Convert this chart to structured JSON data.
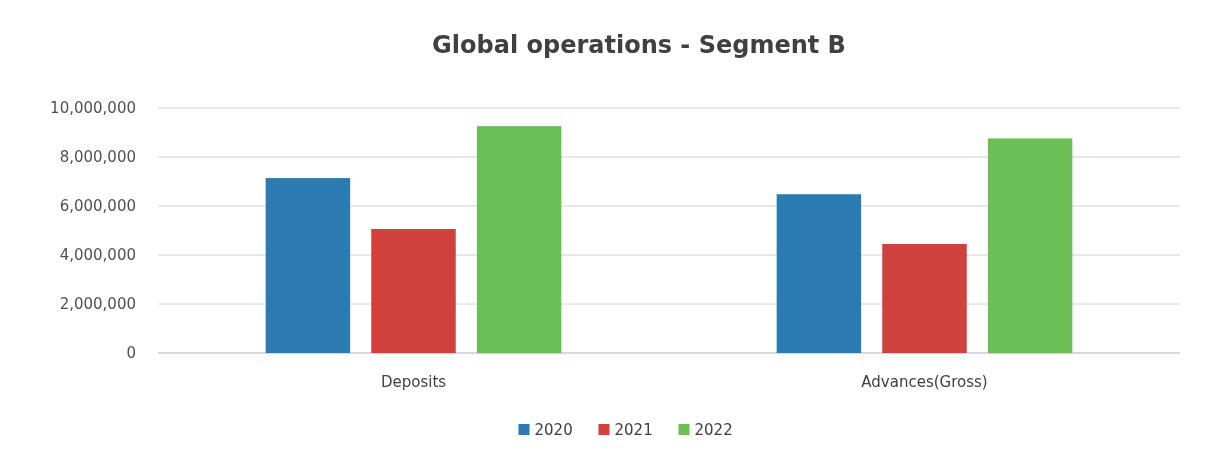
{
  "chart_data": {
    "type": "bar",
    "title": "Global operations - Segment B",
    "categories": [
      "Deposits",
      "Advances(Gross)"
    ],
    "series": [
      {
        "name": "2020",
        "color": "#2b7bb0",
        "values": [
          7140000,
          6480000
        ]
      },
      {
        "name": "2021",
        "color": "#d0403c",
        "values": [
          5060000,
          4450000
        ]
      },
      {
        "name": "2022",
        "color": "#6cbf56",
        "values": [
          9260000,
          8760000
        ]
      }
    ],
    "ylim": [
      0,
      10000000
    ],
    "yticks": [
      {
        "value": 0,
        "label": "0"
      },
      {
        "value": 2000000,
        "label": "2,000,000"
      },
      {
        "value": 4000000,
        "label": "4,000,000"
      },
      {
        "value": 6000000,
        "label": "6,000,000"
      },
      {
        "value": 8000000,
        "label": "8,000,000"
      },
      {
        "value": 10000000,
        "label": "10,000,000"
      }
    ],
    "grid": "y",
    "legend": "bottom"
  }
}
